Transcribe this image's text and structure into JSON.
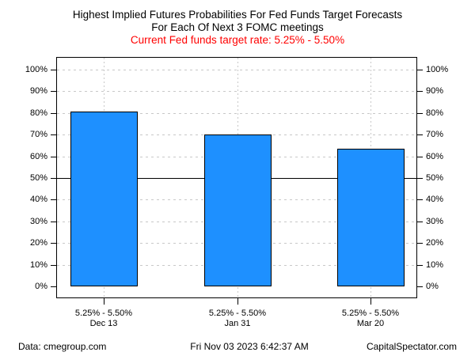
{
  "header": {
    "title_line1": "Highest Implied Futures Probabilities For Fed Funds Target Forecasts",
    "title_line2": "For Each Of Next 3 FOMC meetings",
    "subtitle": "Current Fed funds target rate: 5.25% - 5.50%",
    "subtitle_color": "#ff0000"
  },
  "chart_data": {
    "type": "bar",
    "title": "Highest Implied Futures Probabilities For Fed Funds Target Forecasts For Each Of Next 3 FOMC meetings",
    "subtitle": "Current Fed funds target rate: 5.25% - 5.50%",
    "categories": [
      {
        "rate": "5.25% - 5.50%",
        "date": "Dec 13"
      },
      {
        "rate": "5.25% - 5.50%",
        "date": "Jan 31"
      },
      {
        "rate": "5.25% - 5.50%",
        "date": "Mar 20"
      }
    ],
    "values": [
      80.5,
      70.2,
      63.6
    ],
    "unit": "%",
    "ylim": [
      0,
      100
    ],
    "y_tick_values": [
      0,
      10,
      20,
      30,
      40,
      50,
      60,
      70,
      80,
      90,
      100
    ],
    "y_tick_labels": [
      "0%",
      "10%",
      "20%",
      "30%",
      "40%",
      "50%",
      "60%",
      "70%",
      "80%",
      "90%",
      "100%"
    ],
    "reference_line_value": 50,
    "axis_sides": "left-and-right",
    "legend": "none",
    "grid": "dashed-horizontal-and-dotted-vertical",
    "colors": {
      "bar_fill": "#1e90ff",
      "bar_border": "#000000",
      "gridline": "#c8c8c8",
      "axis": "#000000",
      "reference_line": "#000000"
    }
  },
  "footer": {
    "left": "Data: cmegroup.com",
    "center": "Fri Nov 03 2023 6:42:37 AM",
    "right": "CapitalSpectator.com"
  }
}
